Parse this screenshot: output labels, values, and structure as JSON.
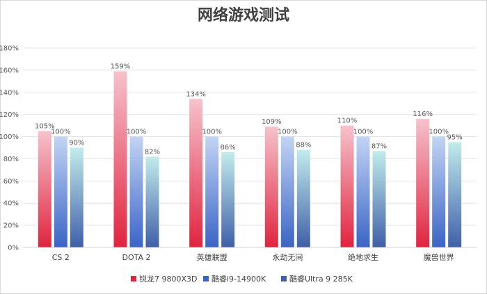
{
  "chart_data": {
    "type": "bar",
    "title": "网络游戏测试",
    "categories": [
      "CS 2",
      "DOTA 2",
      "英雄联盟",
      "永劫无间",
      "绝地求生",
      "魔兽世界"
    ],
    "series": [
      {
        "name": "锐龙7 9800X3D",
        "values": [
          105,
          159,
          134,
          109,
          110,
          116
        ],
        "color_top": "#f6c2cc",
        "color_bottom": "#e0243f"
      },
      {
        "name": "酷睿i9-14900K",
        "values": [
          100,
          100,
          100,
          100,
          100,
          100
        ],
        "color_top": "#c3d4f4",
        "color_bottom": "#3a64c6"
      },
      {
        "name": "酷睿Ultra 9 285K",
        "values": [
          90,
          82,
          86,
          88,
          87,
          95
        ],
        "color_top": "#c2ecec",
        "color_bottom": "#3f5fa8"
      }
    ],
    "value_suffix": "%",
    "yticks": [
      "0%",
      "20%",
      "40%",
      "60%",
      "80%",
      "100%",
      "120%",
      "140%",
      "160%",
      "180%"
    ],
    "ylim": [
      0,
      180
    ],
    "grid": true,
    "legend_position": "bottom"
  }
}
